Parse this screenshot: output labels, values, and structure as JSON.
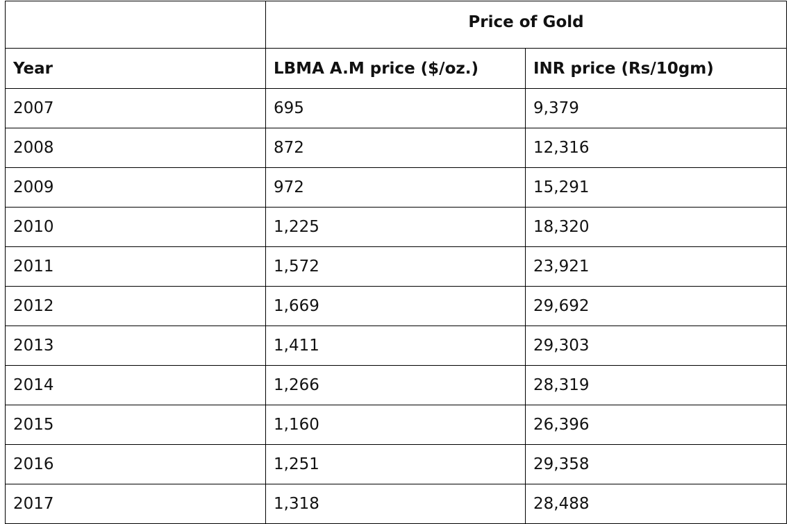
{
  "table": {
    "group_header": "Price of Gold",
    "columns": [
      "Year",
      "LBMA A.M price ($/oz.)",
      "INR price (Rs/10gm)"
    ],
    "rows": [
      [
        "2007",
        "695",
        "9,379"
      ],
      [
        "2008",
        "872",
        "12,316"
      ],
      [
        "2009",
        "972",
        "15,291"
      ],
      [
        "2010",
        "1,225",
        "18,320"
      ],
      [
        "2011",
        "1,572",
        "23,921"
      ],
      [
        "2012",
        "1,669",
        "29,692"
      ],
      [
        "2013",
        "1,411",
        "29,303"
      ],
      [
        "2014",
        "1,266",
        "28,319"
      ],
      [
        "2015",
        "1,160",
        "26,396"
      ],
      [
        "2016",
        "1,251",
        "29,358"
      ],
      [
        "2017",
        "1,318",
        "28,488"
      ]
    ]
  }
}
